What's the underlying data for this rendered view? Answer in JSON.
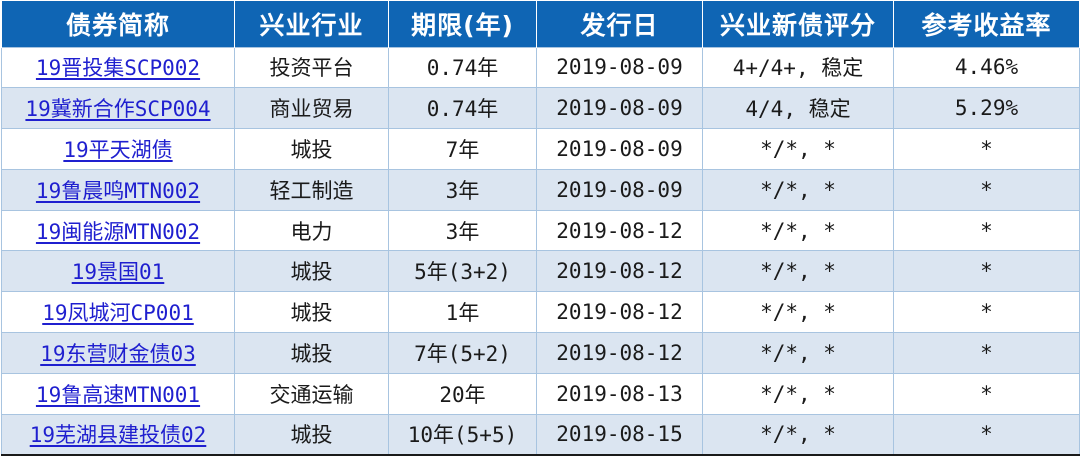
{
  "table": {
    "headers": [
      "债券简称",
      "兴业行业",
      "期限(年)",
      "发行日",
      "兴业新债评分",
      "参考收益率"
    ],
    "rows": [
      {
        "name": "19晋投集SCP002",
        "industry": "投资平台",
        "term": "0.74年",
        "issue_date": "2019-08-09",
        "score": "4+/4+, 稳定",
        "yield": "4.46%"
      },
      {
        "name": "19冀新合作SCP004",
        "industry": "商业贸易",
        "term": "0.74年",
        "issue_date": "2019-08-09",
        "score": "4/4, 稳定",
        "yield": "5.29%"
      },
      {
        "name": "19平天湖债",
        "industry": "城投",
        "term": "7年",
        "issue_date": "2019-08-09",
        "score": "*/*, *",
        "yield": "*"
      },
      {
        "name": "19鲁晨鸣MTN002",
        "industry": "轻工制造",
        "term": "3年",
        "issue_date": "2019-08-09",
        "score": "*/*, *",
        "yield": "*"
      },
      {
        "name": "19闽能源MTN002",
        "industry": "电力",
        "term": "3年",
        "issue_date": "2019-08-12",
        "score": "*/*, *",
        "yield": "*"
      },
      {
        "name": "19景国01",
        "industry": "城投",
        "term": "5年(3+2)",
        "issue_date": "2019-08-12",
        "score": "*/*, *",
        "yield": "*"
      },
      {
        "name": "19凤城河CP001",
        "industry": "城投",
        "term": "1年",
        "issue_date": "2019-08-12",
        "score": "*/*, *",
        "yield": "*"
      },
      {
        "name": "19东营财金债03",
        "industry": "城投",
        "term": "7年(5+2)",
        "issue_date": "2019-08-12",
        "score": "*/*, *",
        "yield": "*"
      },
      {
        "name": "19鲁高速MTN001",
        "industry": "交通运输",
        "term": "20年",
        "issue_date": "2019-08-13",
        "score": "*/*, *",
        "yield": "*"
      },
      {
        "name": "19芜湖县建投债02",
        "industry": "城投",
        "term": "10年(5+5)",
        "issue_date": "2019-08-15",
        "score": "*/*, *",
        "yield": "*"
      }
    ]
  },
  "colors": {
    "header_bg": "#0f65b4",
    "header_text": "#ffffff",
    "stripe": "#dbe5f1",
    "link": "#1f1fcf"
  }
}
